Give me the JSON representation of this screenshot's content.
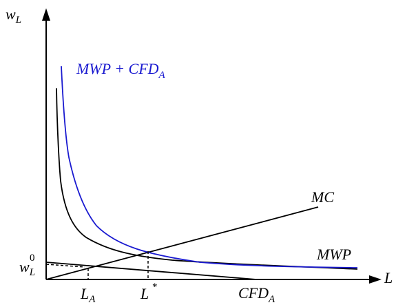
{
  "diagram": {
    "y_axis_label": {
      "base": "w",
      "sub": "L"
    },
    "x_axis_label": "L",
    "w0_label": {
      "base": "w",
      "sub": "L",
      "sup": "0"
    },
    "curves": {
      "mwp_plus_cfd": {
        "label_main": "MWP + CFD",
        "label_sub": "A",
        "color": "#1a1ad0"
      },
      "mwp": {
        "label": "MWP",
        "color": "#000000"
      },
      "mc": {
        "label": "MC",
        "color": "#000000"
      },
      "cfd": {
        "label_main": "CFD",
        "label_sub": "A",
        "color": "#000000"
      }
    },
    "x_markers": {
      "la": {
        "base": "L",
        "sub": "A"
      },
      "lstar": {
        "base": "L",
        "sup": "*"
      }
    }
  }
}
